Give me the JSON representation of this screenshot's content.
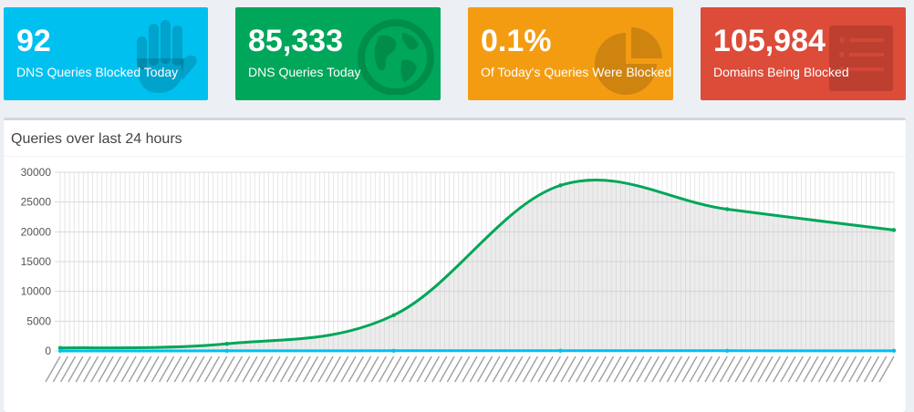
{
  "stats": [
    {
      "value": "92",
      "label": "DNS Queries Blocked Today",
      "color": "#00c0ef",
      "icon": "hand-icon"
    },
    {
      "value": "85,333",
      "label": "DNS Queries Today",
      "color": "#00a65a",
      "icon": "globe-icon"
    },
    {
      "value": "0.1%",
      "label": "Of Today's Queries Were Blocked",
      "color": "#f39c12",
      "icon": "pie-chart-icon"
    },
    {
      "value": "105,984",
      "label": "Domains Being Blocked",
      "color": "#dd4b39",
      "icon": "list-icon"
    }
  ],
  "panel": {
    "title": "Queries over last 24 hours"
  },
  "chart_data": {
    "type": "area",
    "y_ticks": [
      0,
      5000,
      10000,
      15000,
      20000,
      25000,
      30000
    ],
    "ylim": [
      0,
      30000
    ],
    "grid": true,
    "series": [
      {
        "color": "#00a65a",
        "fill": "rgba(200,200,200,0.35)",
        "x": [
          0,
          2,
          4,
          6,
          8,
          10
        ],
        "values": [
          500,
          1200,
          6000,
          27800,
          23800,
          20300
        ]
      },
      {
        "color": "#00c0ef",
        "x": [
          0,
          2,
          4,
          6,
          8,
          10
        ],
        "values": [
          0,
          10,
          30,
          40,
          30,
          25
        ]
      }
    ]
  }
}
